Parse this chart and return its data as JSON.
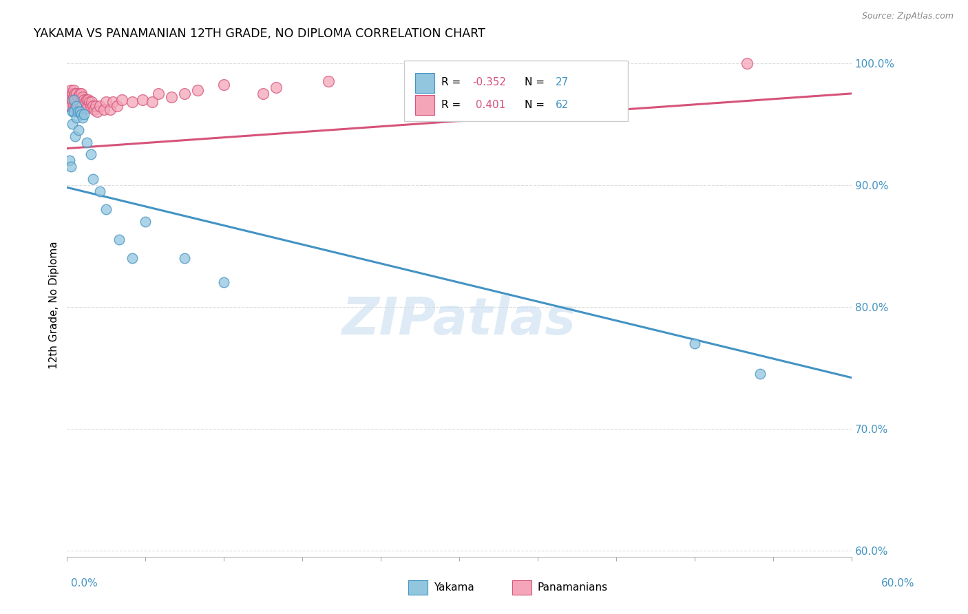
{
  "title": "YAKAMA VS PANAMANIAN 12TH GRADE, NO DIPLOMA CORRELATION CHART",
  "source": "Source: ZipAtlas.com",
  "ylabel": "12th Grade, No Diploma",
  "xmin": 0.0,
  "xmax": 0.6,
  "ymin": 0.595,
  "ymax": 1.008,
  "yticks": [
    0.6,
    0.7,
    0.8,
    0.9,
    1.0
  ],
  "ytick_labels": [
    "60.0%",
    "70.0%",
    "80.0%",
    "90.0%",
    "100.0%"
  ],
  "yakama_color": "#92c5de",
  "pana_color": "#f4a6b8",
  "yakama_edge_color": "#4393c3",
  "pana_edge_color": "#d6537a",
  "yakama_line_color": "#4393c3",
  "pana_line_color": "#d6537a",
  "watermark_color": "#c8dff0",
  "r_yakama": "-0.352",
  "n_yakama": "27",
  "r_pana": "0.401",
  "n_pana": "62",
  "blue_label_color": "#4393c3",
  "pink_label_color": "#d6537a",
  "yakama_x": [
    0.002,
    0.003,
    0.004,
    0.004,
    0.005,
    0.005,
    0.006,
    0.007,
    0.007,
    0.008,
    0.009,
    0.01,
    0.011,
    0.012,
    0.013,
    0.015,
    0.018,
    0.02,
    0.025,
    0.03,
    0.04,
    0.05,
    0.06,
    0.09,
    0.12,
    0.48,
    0.53
  ],
  "yakama_y": [
    0.92,
    0.915,
    0.96,
    0.95,
    0.97,
    0.96,
    0.94,
    0.965,
    0.955,
    0.96,
    0.945,
    0.96,
    0.958,
    0.955,
    0.958,
    0.935,
    0.925,
    0.905,
    0.895,
    0.88,
    0.855,
    0.84,
    0.87,
    0.84,
    0.82,
    0.77,
    0.745
  ],
  "pana_x": [
    0.001,
    0.001,
    0.001,
    0.002,
    0.002,
    0.002,
    0.003,
    0.003,
    0.003,
    0.004,
    0.004,
    0.005,
    0.005,
    0.005,
    0.006,
    0.006,
    0.006,
    0.007,
    0.007,
    0.007,
    0.008,
    0.008,
    0.009,
    0.01,
    0.01,
    0.01,
    0.011,
    0.011,
    0.012,
    0.013,
    0.014,
    0.015,
    0.015,
    0.016,
    0.017,
    0.018,
    0.019,
    0.02,
    0.021,
    0.022,
    0.023,
    0.025,
    0.028,
    0.03,
    0.033,
    0.035,
    0.038,
    0.042,
    0.05,
    0.058,
    0.065,
    0.07,
    0.08,
    0.09,
    0.1,
    0.12,
    0.15,
    0.16,
    0.2,
    0.34,
    0.37,
    0.52
  ],
  "pana_y": [
    0.975,
    0.97,
    0.965,
    0.975,
    0.97,
    0.965,
    0.978,
    0.972,
    0.965,
    0.975,
    0.97,
    0.978,
    0.972,
    0.965,
    0.975,
    0.97,
    0.963,
    0.975,
    0.968,
    0.962,
    0.972,
    0.965,
    0.97,
    0.975,
    0.968,
    0.963,
    0.975,
    0.968,
    0.972,
    0.97,
    0.968,
    0.97,
    0.963,
    0.97,
    0.968,
    0.965,
    0.968,
    0.965,
    0.962,
    0.965,
    0.96,
    0.965,
    0.962,
    0.968,
    0.962,
    0.968,
    0.965,
    0.97,
    0.968,
    0.97,
    0.968,
    0.975,
    0.972,
    0.975,
    0.978,
    0.982,
    0.975,
    0.98,
    0.985,
    0.988,
    0.988,
    1.0
  ],
  "blue_trend_x0": 0.0,
  "blue_trend_y0": 0.898,
  "blue_trend_x1": 0.6,
  "blue_trend_y1": 0.742,
  "pink_trend_x0": 0.0,
  "pink_trend_y0": 0.93,
  "pink_trend_x1": 0.6,
  "pink_trend_y1": 0.975
}
